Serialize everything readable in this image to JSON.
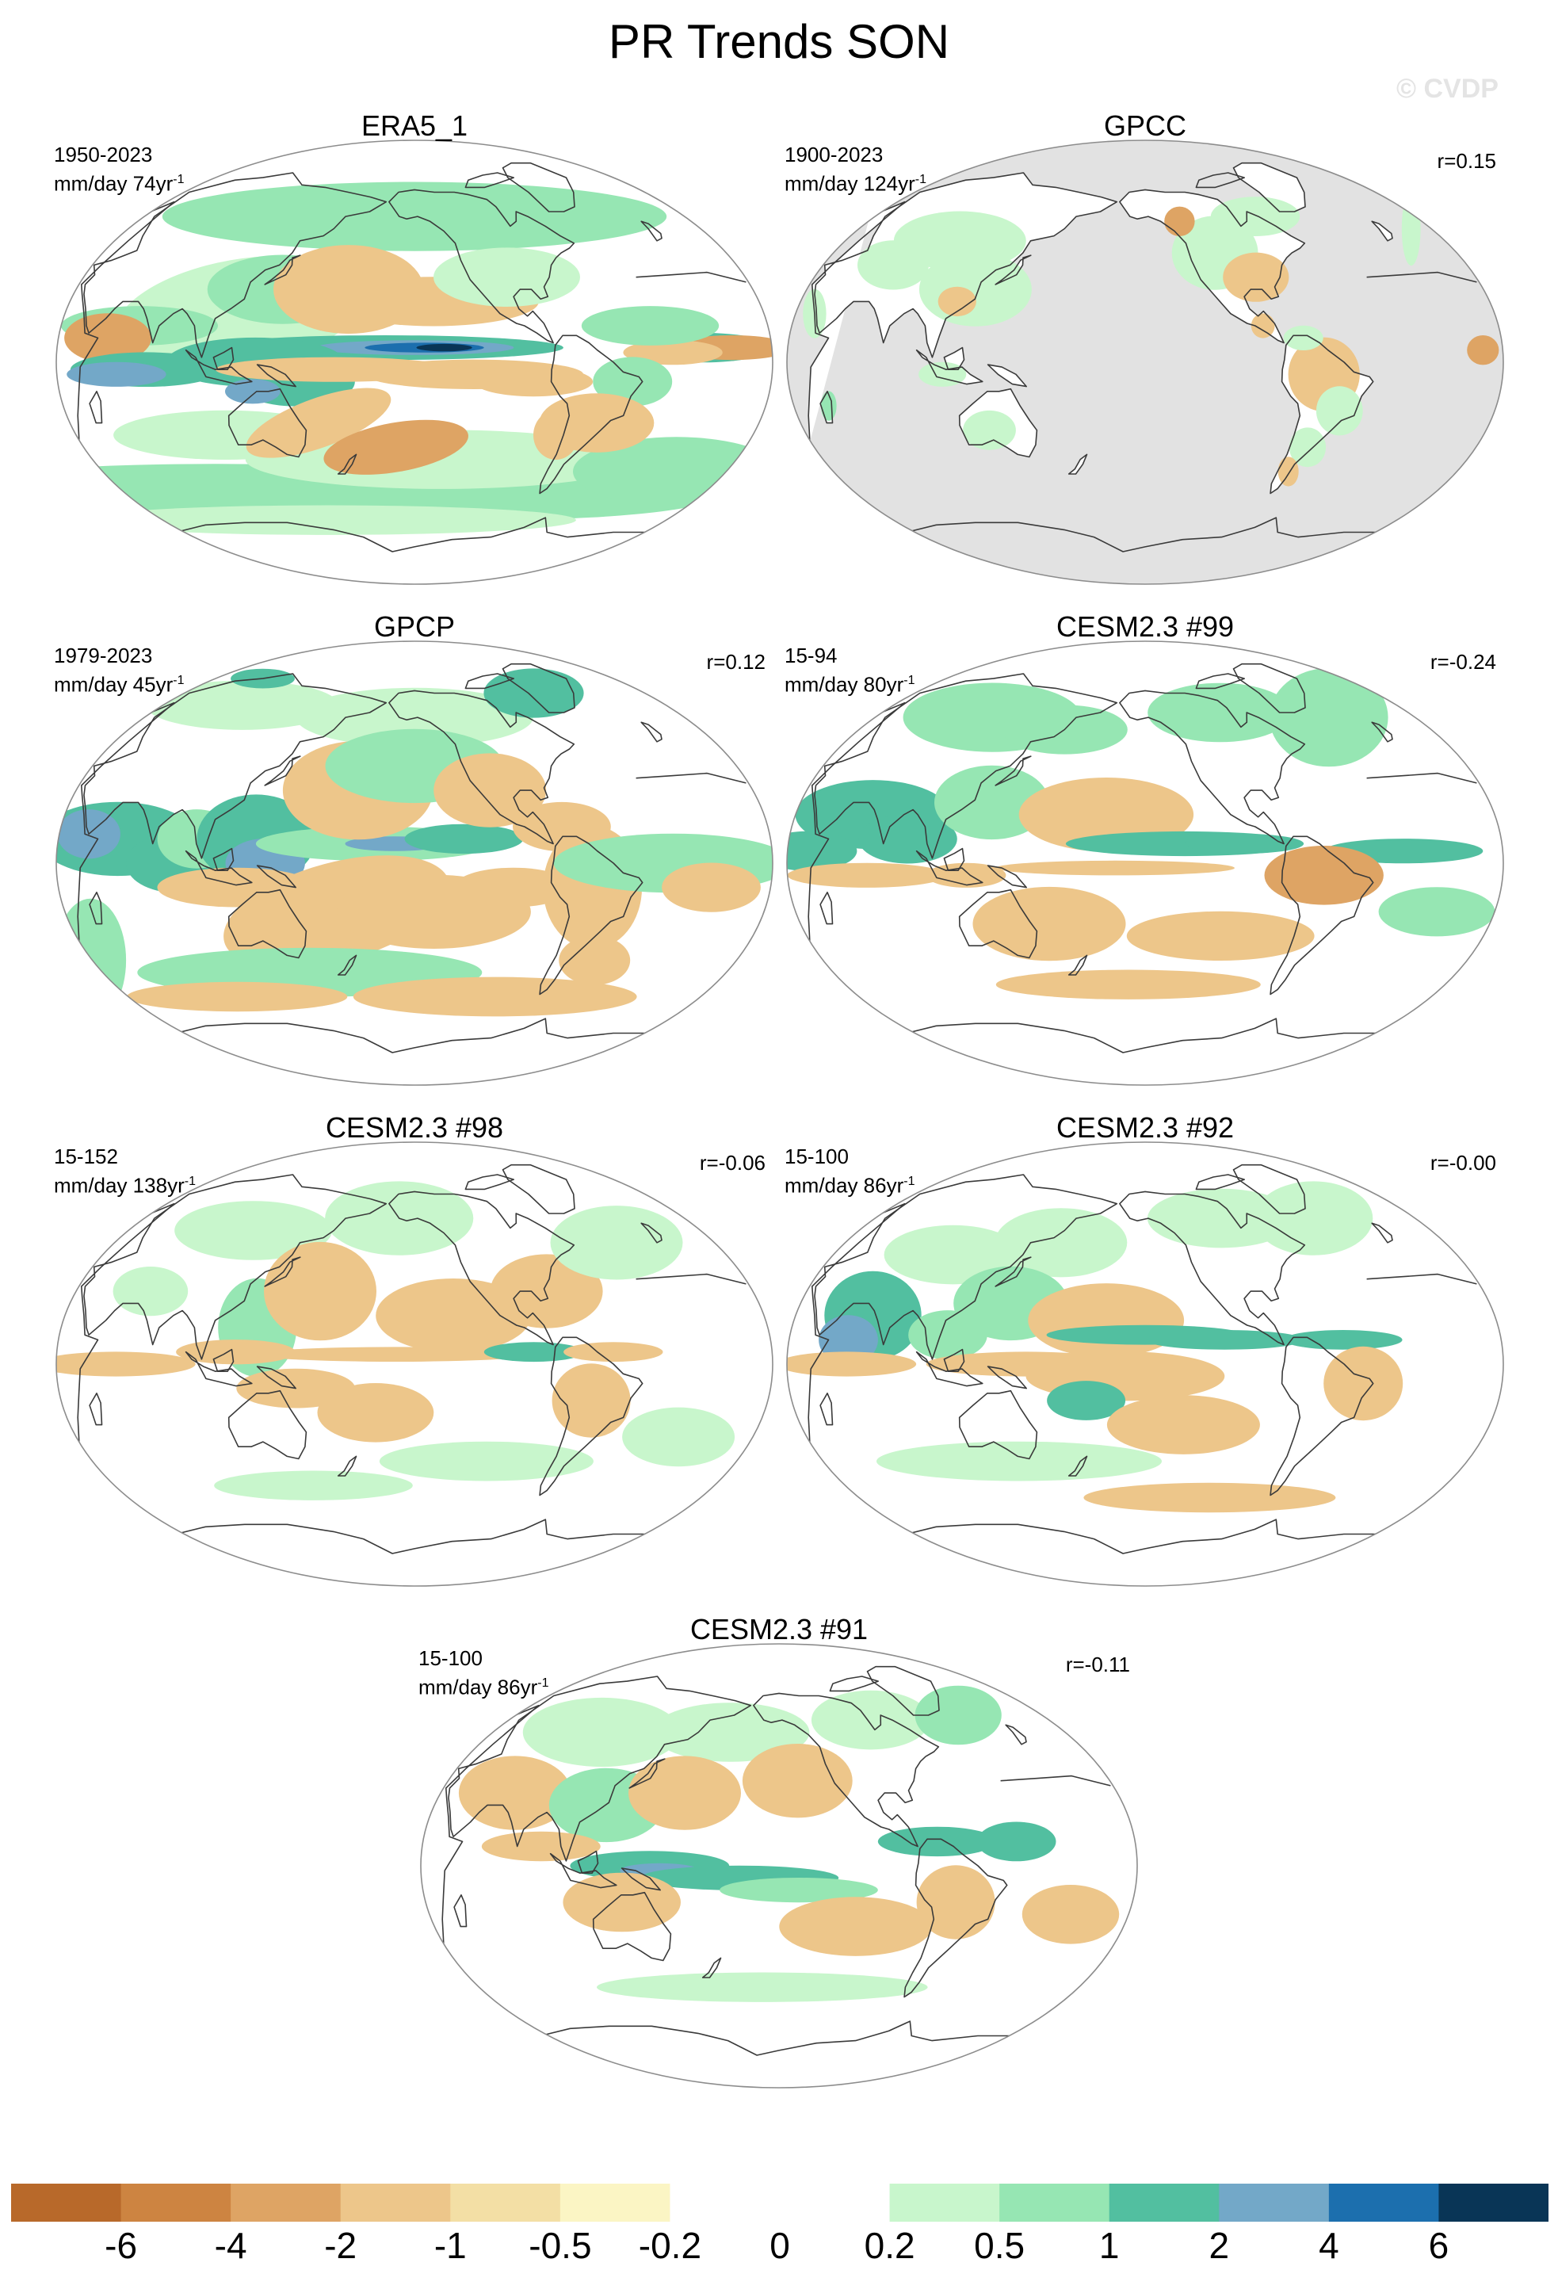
{
  "figure": {
    "title": "PR Trends SON",
    "watermark": "© CVDP"
  },
  "panels": [
    {
      "title": "ERA5_1",
      "period": "1950-2023",
      "units_base": "mm/day 74yr",
      "units_exp": "-1",
      "corr": "",
      "style": "era5"
    },
    {
      "title": "GPCC",
      "period": "1900-2023",
      "units_base": "mm/day 124yr",
      "units_exp": "-1",
      "corr": "r=0.15",
      "style": "gpcc"
    },
    {
      "title": "GPCP",
      "period": "1979-2023",
      "units_base": "mm/day 45yr",
      "units_exp": "-1",
      "corr": "r=0.12",
      "style": "gpcp"
    },
    {
      "title": "CESM2.3 #99",
      "period": "15-94",
      "units_base": "mm/day 80yr",
      "units_exp": "-1",
      "corr": "r=-0.24",
      "style": "c99"
    },
    {
      "title": "CESM2.3 #98",
      "period": "15-152",
      "units_base": "mm/day 138yr",
      "units_exp": "-1",
      "corr": "r=-0.06",
      "style": "c98"
    },
    {
      "title": "CESM2.3 #92",
      "period": "15-100",
      "units_base": "mm/day 86yr",
      "units_exp": "-1",
      "corr": "r=-0.00",
      "style": "c92"
    },
    {
      "title": "CESM2.3 #91",
      "period": "15-100",
      "units_base": "mm/day 86yr",
      "units_exp": "-1",
      "corr": "r=-0.11",
      "style": "c91"
    }
  ],
  "colorbar": {
    "colors": [
      "#b8692a",
      "#cd8441",
      "#dea464",
      "#edc68a",
      "#f3dfa5",
      "#fbf5c4",
      "#ffffff",
      "#ffffff",
      "#c8f6cc",
      "#96e6b3",
      "#52bfa0",
      "#73a8c8",
      "#1c6fae",
      "#093556"
    ],
    "labels": [
      "-6",
      "-4",
      "-2",
      "-1",
      "-0.5",
      "-0.2",
      "0",
      "0.2",
      "0.5",
      "1",
      "2",
      "4",
      "6"
    ],
    "missing_color": "#e2e2e2",
    "coast_color": "#3a3a3a",
    "frame_color": "#8c8c8c"
  }
}
